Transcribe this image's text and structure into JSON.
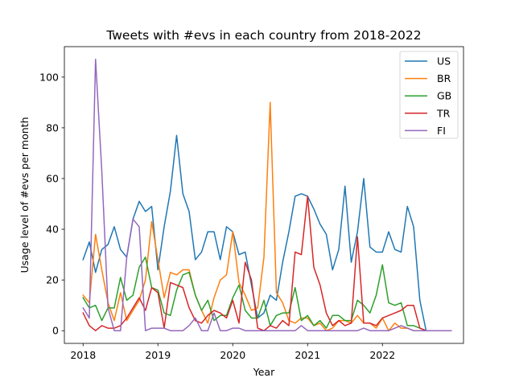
{
  "chart_data": {
    "type": "line",
    "title": "Tweets with #evs in each country from 2018-2022",
    "xlabel": "Year",
    "ylabel": "Usage level of #evs per month",
    "x_start": "2018-01",
    "x_ticks": [
      2018,
      2019,
      2020,
      2021,
      2022
    ],
    "xlim": [
      "2017-10",
      "2023-02"
    ],
    "y_ticks": [
      0,
      20,
      40,
      60,
      80,
      100
    ],
    "ylim": [
      -5,
      112
    ],
    "grid": false,
    "legend_position": "top-right",
    "series": [
      {
        "name": "US",
        "color": "#1f77b4",
        "values": [
          28,
          35,
          23,
          32,
          34,
          41,
          32,
          29,
          44,
          51,
          47,
          49,
          24,
          41,
          55,
          77,
          54,
          47,
          28,
          31,
          39,
          39,
          28,
          41,
          39,
          30,
          31,
          18,
          5,
          7,
          14,
          12,
          27,
          39,
          53,
          54,
          53,
          48,
          42,
          38,
          24,
          32,
          57,
          27,
          39,
          60,
          33,
          31,
          31,
          39,
          32,
          31,
          49,
          41,
          12,
          0,
          0,
          0,
          0,
          0
        ]
      },
      {
        "name": "BR",
        "color": "#ff7f0e",
        "values": [
          14,
          11,
          38,
          24,
          11,
          4,
          15,
          4,
          8,
          12,
          20,
          43,
          28,
          13,
          23,
          22,
          24,
          24,
          14,
          8,
          3,
          13,
          20,
          22,
          39,
          19,
          14,
          8,
          9,
          29,
          90,
          15,
          11,
          4,
          3,
          5,
          5,
          2,
          3,
          0,
          1,
          4,
          4,
          3,
          6,
          3,
          3,
          1,
          5,
          0,
          3,
          1,
          1,
          0,
          0,
          0,
          0,
          0,
          0,
          0
        ]
      },
      {
        "name": "GB",
        "color": "#2ca02c",
        "values": [
          13,
          9,
          10,
          4,
          9,
          9,
          21,
          12,
          14,
          25,
          29,
          17,
          16,
          7,
          6,
          16,
          22,
          23,
          14,
          8,
          12,
          4,
          6,
          6,
          13,
          18,
          8,
          5,
          5,
          12,
          2,
          6,
          7,
          7,
          17,
          4,
          6,
          2,
          4,
          1,
          6,
          6,
          4,
          4,
          12,
          10,
          7,
          14,
          26,
          11,
          10,
          11,
          2,
          2,
          1,
          0,
          0,
          0,
          0,
          0
        ]
      },
      {
        "name": "TR",
        "color": "#d62728",
        "values": [
          7,
          2,
          0,
          2,
          1,
          1,
          2,
          5,
          9,
          13,
          8,
          17,
          15,
          1,
          19,
          18,
          17,
          9,
          4,
          3,
          6,
          8,
          7,
          5,
          12,
          3,
          27,
          20,
          1,
          0,
          2,
          1,
          4,
          2,
          31,
          30,
          53,
          25,
          18,
          7,
          2,
          4,
          2,
          3,
          37,
          3,
          3,
          2,
          5,
          6,
          7,
          8,
          10,
          10,
          1,
          0,
          0,
          0,
          0,
          0
        ]
      },
      {
        "name": "FI",
        "color": "#9467bd",
        "values": [
          9,
          5,
          107,
          63,
          9,
          0,
          0,
          29,
          44,
          41,
          0,
          1,
          1,
          1,
          0,
          0,
          0,
          2,
          5,
          0,
          0,
          7,
          0,
          0,
          1,
          1,
          0,
          0,
          0,
          0,
          0,
          0,
          0,
          0,
          0,
          2,
          0,
          0,
          0,
          0,
          0,
          0,
          0,
          0,
          0,
          1,
          0,
          0,
          0,
          0,
          1,
          2,
          1,
          0,
          0,
          0,
          0,
          0,
          0,
          0
        ]
      }
    ]
  }
}
